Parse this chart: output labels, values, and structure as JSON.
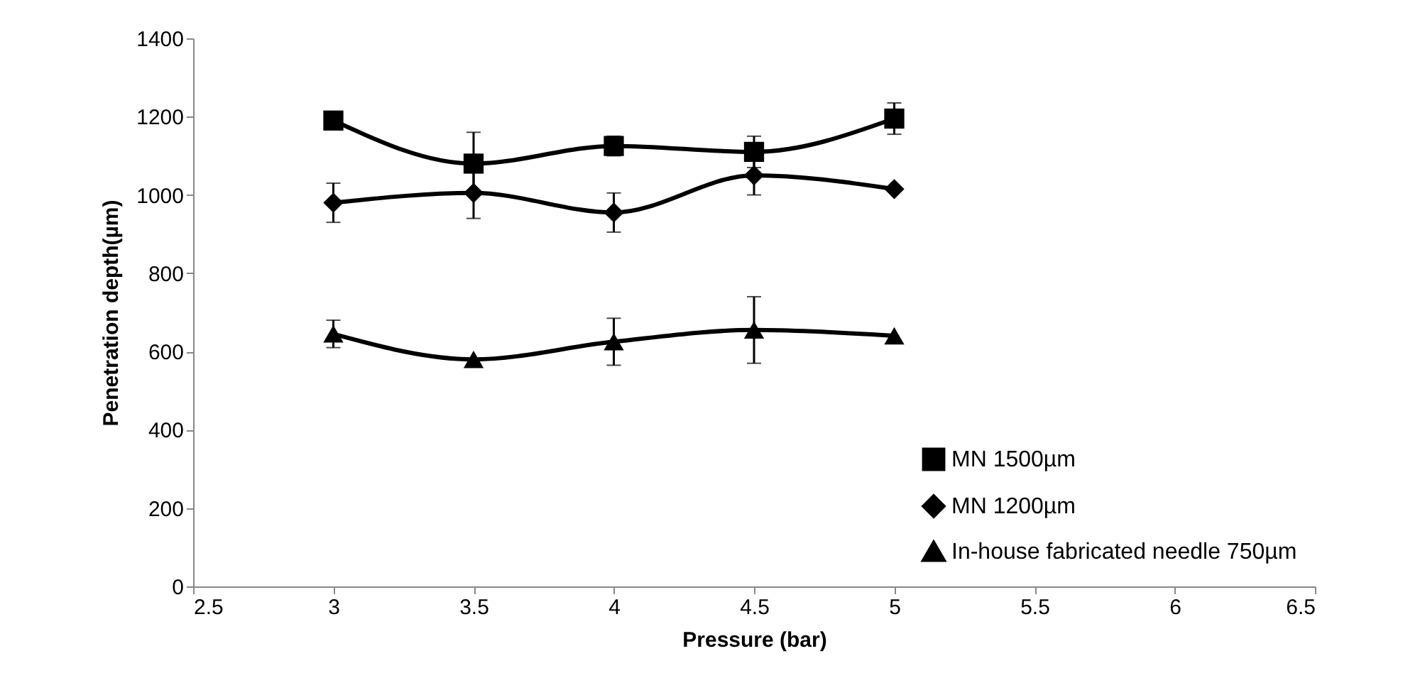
{
  "chart_data": {
    "type": "line",
    "xlabel": "Pressure (bar)",
    "ylabel": "Penetration depth(µm)",
    "x": [
      3,
      3.5,
      4,
      4.5,
      5
    ],
    "series": [
      {
        "name": "MN 1500µm",
        "color": "#000000",
        "marker": "square",
        "values": [
          1190,
          1080,
          1125,
          1110,
          1195
        ],
        "errors": [
          null,
          80,
          25,
          40,
          40
        ]
      },
      {
        "name": "MN 1200µm",
        "color": "#000000",
        "marker": "diamond",
        "values": [
          980,
          1005,
          955,
          1050,
          1015
        ],
        "errors": [
          50,
          65,
          50,
          50,
          null
        ]
      },
      {
        "name": "In-house fabricated needle 750µm",
        "color": "#000000",
        "marker": "triangle",
        "values": [
          645,
          580,
          625,
          655,
          640
        ],
        "errors": [
          35,
          null,
          60,
          85,
          null
        ]
      }
    ],
    "xlim": [
      2.5,
      6.5
    ],
    "xticks": [
      2.5,
      3,
      3.5,
      4,
      4.5,
      5,
      5.5,
      6,
      6.5
    ],
    "ylim": [
      0,
      1400
    ],
    "yticks": [
      0,
      200,
      400,
      600,
      800,
      1000,
      1200,
      1400
    ],
    "grid": false,
    "legend": "bottom right",
    "line_style": "solid"
  }
}
